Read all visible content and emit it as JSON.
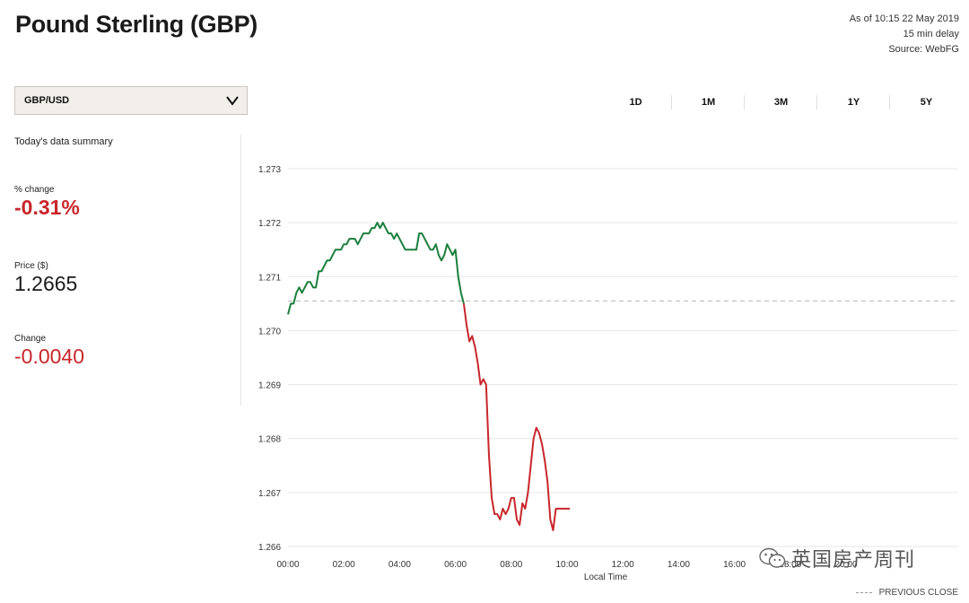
{
  "header": {
    "title": "Pound Sterling (GBP)",
    "as_of": "As of 10:15 22 May 2019",
    "delay": "15 min delay",
    "source": "Source: WebFG"
  },
  "pair_select": {
    "value": "GBP/USD"
  },
  "summary": {
    "heading": "Today's data summary",
    "pct_change_label": "% change",
    "pct_change_value": "-0.31%",
    "price_label": "Price ($)",
    "price_value": "1.2665",
    "change_label": "Change",
    "change_value": "-0.0040"
  },
  "tabs": [
    {
      "label": "1D",
      "active": true
    },
    {
      "label": "1M",
      "active": false
    },
    {
      "label": "3M",
      "active": false
    },
    {
      "label": "1Y",
      "active": false
    },
    {
      "label": "5Y",
      "active": false
    }
  ],
  "legend": {
    "previous_close": "PREVIOUS CLOSE"
  },
  "watermark": {
    "text": "英国房产周刊",
    "icon": "wechat-icon"
  },
  "colors": {
    "up": "#1a7f3c",
    "down": "#c8262b",
    "grid": "#e6e6e6",
    "prev_close": "#b5b5b5"
  },
  "chart_data": {
    "type": "line",
    "title": "",
    "xlabel": "Local Time",
    "ylabel": "",
    "x_ticks": [
      "00:00",
      "02:00",
      "04:00",
      "06:00",
      "08:00",
      "10:00",
      "12:00",
      "14:00",
      "16:00",
      "18:00",
      "20:00"
    ],
    "y_ticks": [
      "1.273",
      "1.272",
      "1.271",
      "1.270",
      "1.269",
      "1.268",
      "1.267",
      "1.266"
    ],
    "xlim_hours": [
      0,
      24
    ],
    "ylim": [
      1.266,
      1.273
    ],
    "grid": true,
    "previous_close": 1.27055,
    "series": [
      {
        "x": [
          0.0,
          0.1,
          0.2,
          0.3,
          0.4,
          0.5,
          0.6,
          0.7,
          0.8,
          0.9,
          1.0,
          1.1,
          1.2,
          1.3,
          1.4,
          1.5,
          1.6,
          1.7,
          1.8,
          1.9,
          2.0,
          2.1,
          2.2,
          2.3,
          2.4,
          2.5,
          2.6,
          2.7,
          2.8,
          2.9,
          3.0,
          3.1,
          3.2,
          3.3,
          3.4,
          3.5,
          3.6,
          3.7,
          3.8,
          3.9,
          4.0,
          4.1,
          4.2,
          4.3,
          4.4,
          4.5,
          4.6,
          4.7,
          4.8,
          4.9,
          5.0,
          5.1,
          5.2,
          5.3,
          5.4,
          5.5,
          5.6,
          5.7,
          5.8,
          5.9,
          6.0,
          6.1,
          6.2,
          6.3,
          6.4,
          6.5,
          6.6,
          6.7,
          6.8,
          6.9,
          7.0,
          7.1,
          7.2,
          7.3,
          7.4,
          7.5,
          7.6,
          7.7,
          7.8,
          7.9,
          8.0,
          8.1,
          8.2,
          8.3,
          8.4,
          8.5,
          8.6,
          8.7,
          8.8,
          8.9,
          9.0,
          9.1,
          9.2,
          9.3,
          9.4,
          9.5,
          9.6,
          9.7,
          9.8,
          9.9,
          10.0,
          10.1
        ],
        "y": [
          1.2703,
          1.2705,
          1.2705,
          1.2707,
          1.2708,
          1.2707,
          1.2708,
          1.2709,
          1.2709,
          1.2708,
          1.2708,
          1.2711,
          1.2711,
          1.2712,
          1.2713,
          1.2713,
          1.2714,
          1.2715,
          1.2715,
          1.2715,
          1.2716,
          1.2716,
          1.2717,
          1.2717,
          1.2717,
          1.2716,
          1.2717,
          1.2718,
          1.2718,
          1.2718,
          1.2719,
          1.2719,
          1.272,
          1.2719,
          1.272,
          1.2719,
          1.2718,
          1.2718,
          1.2717,
          1.2718,
          1.2717,
          1.2716,
          1.2715,
          1.2715,
          1.2715,
          1.2715,
          1.2715,
          1.2718,
          1.2718,
          1.2717,
          1.2716,
          1.2715,
          1.2715,
          1.2716,
          1.2714,
          1.2713,
          1.2714,
          1.2716,
          1.2715,
          1.2714,
          1.2715,
          1.271,
          1.2707,
          1.2705,
          1.2701,
          1.2698,
          1.2699,
          1.2697,
          1.2694,
          1.269,
          1.2691,
          1.269,
          1.2677,
          1.2669,
          1.2666,
          1.2666,
          1.2665,
          1.2667,
          1.2666,
          1.2667,
          1.2669,
          1.2669,
          1.2665,
          1.2664,
          1.2668,
          1.2667,
          1.267,
          1.2675,
          1.268,
          1.2682,
          1.2681,
          1.2679,
          1.2676,
          1.2672,
          1.2665,
          1.2663,
          1.2667,
          1.2667,
          1.2667,
          1.2667,
          1.2667,
          1.2667
        ]
      }
    ]
  }
}
